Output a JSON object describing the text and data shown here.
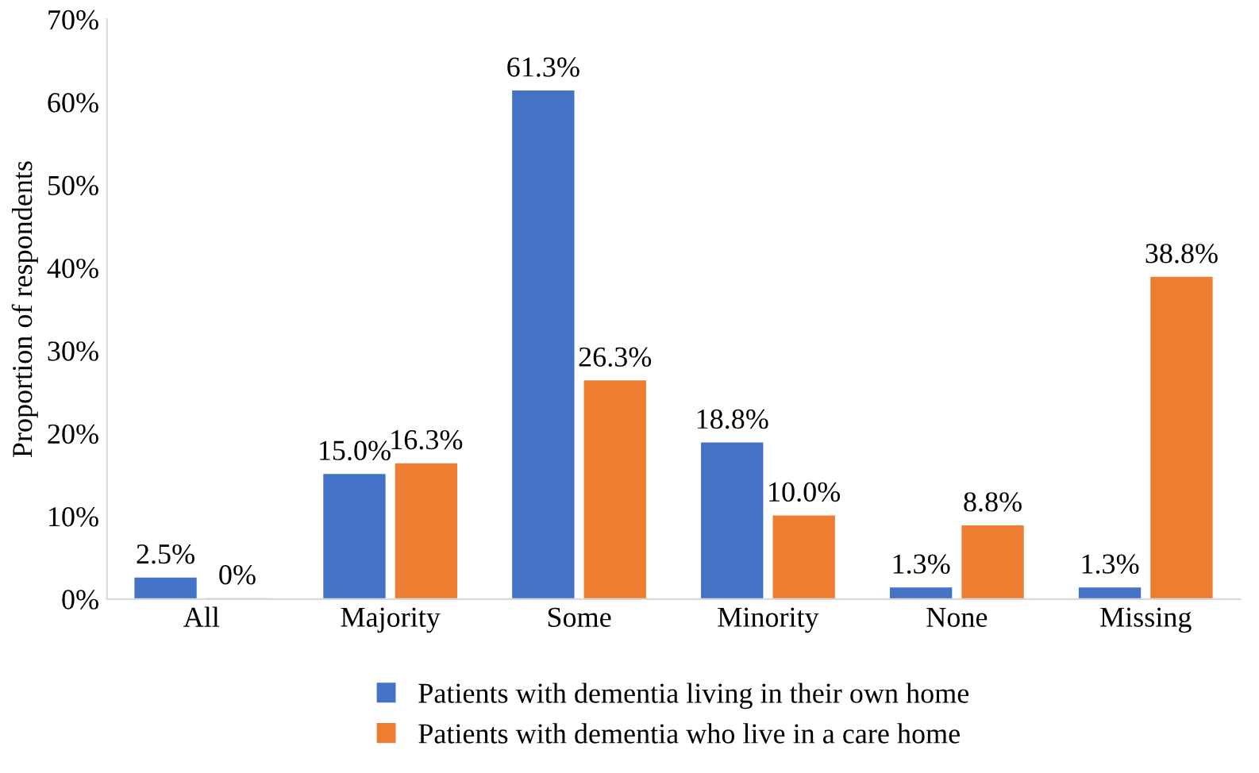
{
  "chart_data": {
    "type": "bar",
    "ylabel": "Proportion of respondents",
    "categories": [
      "All",
      "Majority",
      "Some",
      "Minority",
      "None",
      "Missing"
    ],
    "series": [
      {
        "name": "Patients with dementia living in their own home",
        "color": "#4472c4",
        "values": [
          2.5,
          15.0,
          61.3,
          18.8,
          1.3,
          1.3
        ],
        "value_labels": [
          "2.5%",
          "15.0%",
          "61.3%",
          "18.8%",
          "1.3%",
          "1.3%"
        ]
      },
      {
        "name": "Patients with dementia who live in a care home",
        "color": "#ed7d31",
        "values": [
          0,
          16.3,
          26.3,
          10.0,
          8.8,
          38.8
        ],
        "value_labels": [
          "0%",
          "16.3%",
          "26.3%",
          "10.0%",
          "8.8%",
          "38.8%"
        ]
      }
    ],
    "ylim": [
      0,
      70
    ],
    "yticks": [
      {
        "value": 0,
        "label": "0%"
      },
      {
        "value": 10,
        "label": "10%"
      },
      {
        "value": 20,
        "label": "20%"
      },
      {
        "value": 30,
        "label": "30%"
      },
      {
        "value": 40,
        "label": "40%"
      },
      {
        "value": 50,
        "label": "50%"
      },
      {
        "value": 60,
        "label": "60%"
      },
      {
        "value": 70,
        "label": "70%"
      }
    ],
    "grid": false,
    "legend": "bottom"
  }
}
